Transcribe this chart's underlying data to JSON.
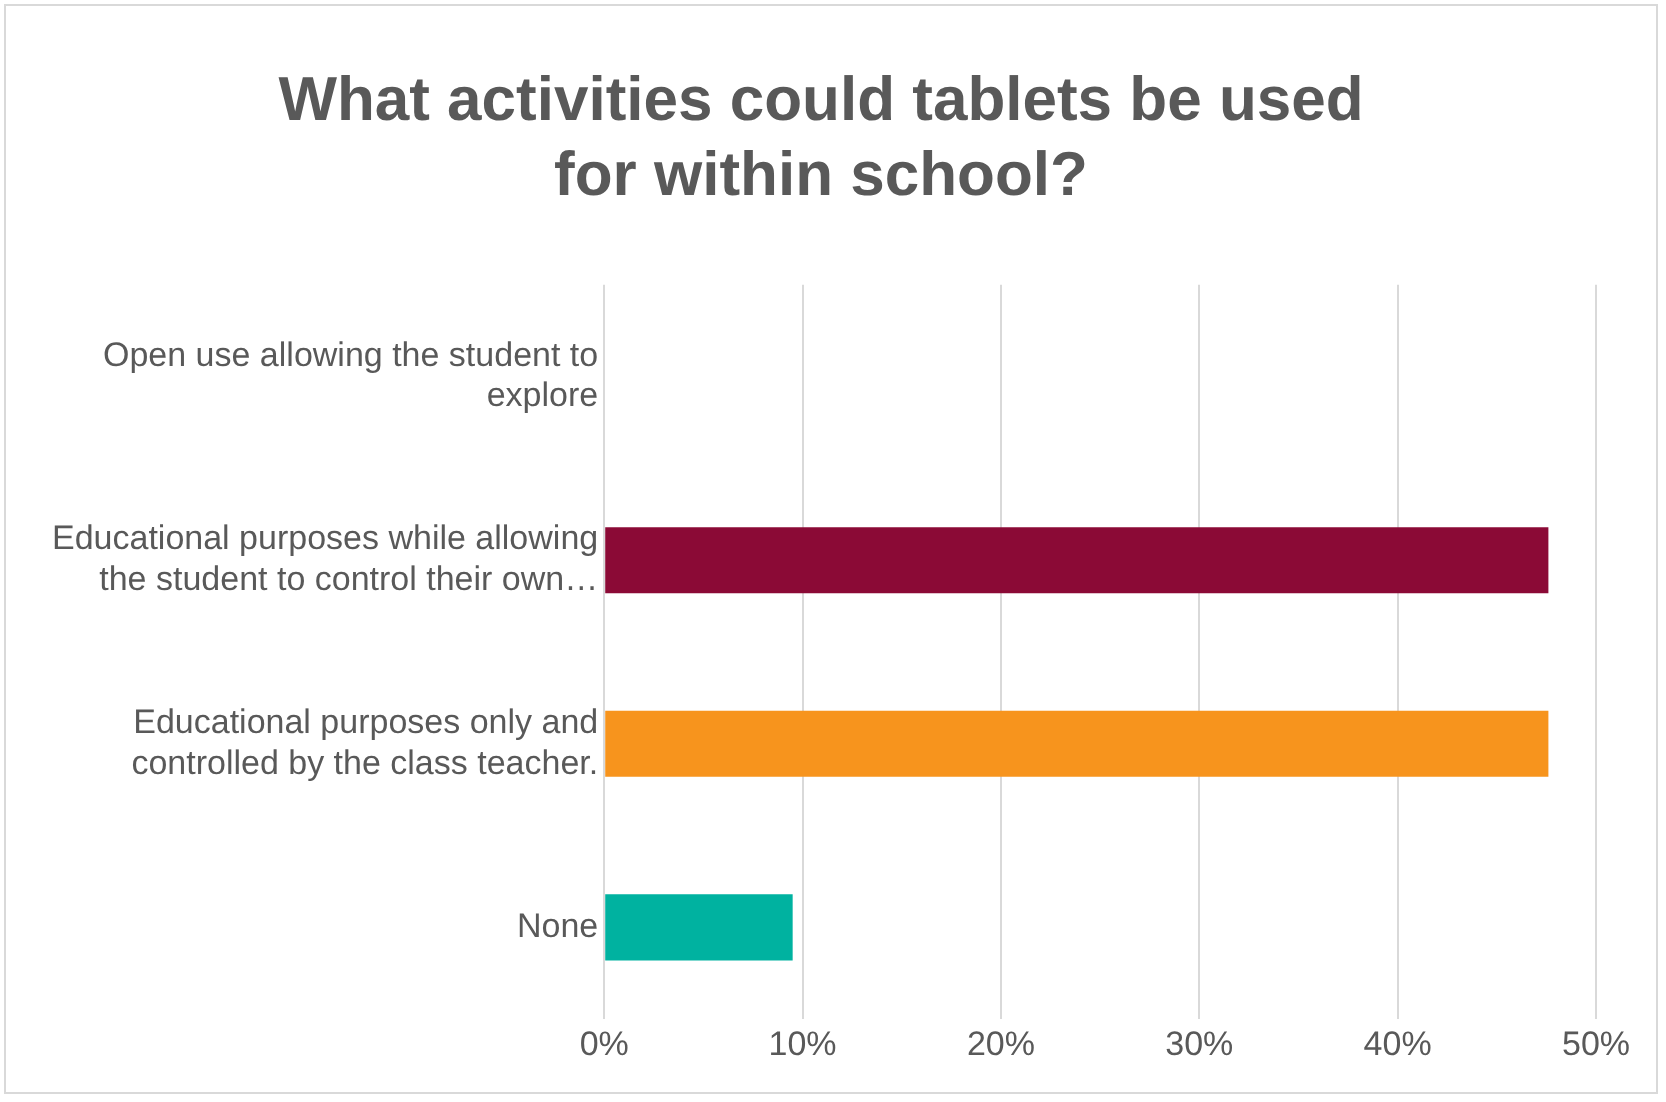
{
  "chart_data": {
    "type": "bar",
    "orientation": "horizontal",
    "title": "What activities could tablets be used for within school?",
    "categories": [
      "Open use allowing the student to explore",
      "Educational purposes while allowing the student to control their own…",
      "Educational purposes only and controlled by the class teacher.",
      "None"
    ],
    "values": [
      0,
      47.6,
      47.6,
      9.5
    ],
    "colors": [
      "#8b0a36",
      "#8b0a36",
      "#f7941d",
      "#00b2a0"
    ],
    "xlim": [
      0,
      50
    ],
    "xticks": [
      {
        "value": 0,
        "label": "0%"
      },
      {
        "value": 10,
        "label": "10%"
      },
      {
        "value": 20,
        "label": "20%"
      },
      {
        "value": 30,
        "label": "30%"
      },
      {
        "value": 40,
        "label": "40%"
      },
      {
        "value": 50,
        "label": "50%"
      }
    ],
    "grid": "x"
  }
}
